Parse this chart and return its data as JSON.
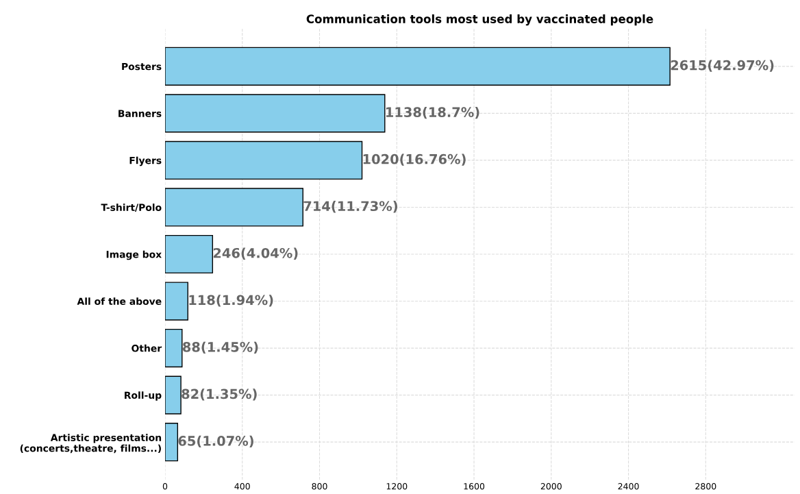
{
  "chart_data": {
    "type": "bar",
    "orientation": "horizontal",
    "title": "Communication tools most used by vaccinated people",
    "categories": [
      "Posters",
      "Banners",
      "Flyers",
      "T-shirt/Polo",
      "Image box",
      "All of the above",
      "Other",
      "Roll-up",
      "Artistic presentation\n(concerts,theatre, films...)"
    ],
    "values": [
      2615,
      1138,
      1020,
      714,
      246,
      118,
      88,
      82,
      65
    ],
    "value_labels": [
      "2615(42.97%)",
      "1138(18.7%)",
      "1020(16.76%)",
      "714(11.73%)",
      "246(4.04%)",
      "118(1.94%)",
      "88(1.45%)",
      "82(1.35%)",
      "65(1.07%)"
    ],
    "color": "#87ceeb",
    "xlim": [
      0,
      3260
    ],
    "xticks": [
      0,
      400,
      800,
      1200,
      1600,
      2000,
      2400,
      2800
    ],
    "grid": true
  }
}
